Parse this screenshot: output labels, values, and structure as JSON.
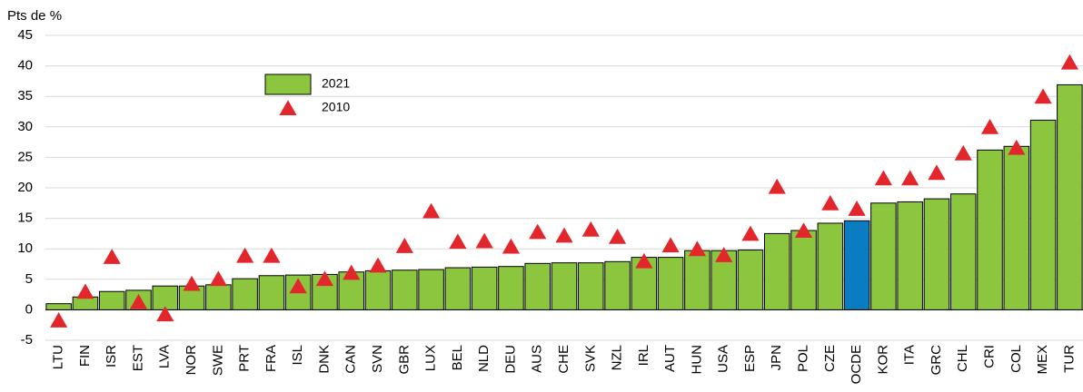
{
  "chart_data": {
    "type": "bar",
    "ylabel": "Pts de %",
    "categories": [
      "LTU",
      "FIN",
      "ISR",
      "EST",
      "LVA",
      "NOR",
      "SWE",
      "PRT",
      "FRA",
      "ISL",
      "DNK",
      "CAN",
      "SVN",
      "GBR",
      "LUX",
      "BEL",
      "NLD",
      "DEU",
      "AUS",
      "CHE",
      "SVK",
      "NZL",
      "IRL",
      "AUT",
      "HUN",
      "USA",
      "ESP",
      "JPN",
      "POL",
      "CZE",
      "OCDE",
      "KOR",
      "ITA",
      "GRC",
      "CHL",
      "CRI",
      "COL",
      "MEX",
      "TUR"
    ],
    "series": [
      {
        "name": "2021",
        "kind": "bar",
        "color": "#8cc63f",
        "colors": [
          "#8cc63f",
          "#8cc63f",
          "#8cc63f",
          "#8cc63f",
          "#8cc63f",
          "#8cc63f",
          "#8cc63f",
          "#8cc63f",
          "#8cc63f",
          "#8cc63f",
          "#8cc63f",
          "#8cc63f",
          "#8cc63f",
          "#8cc63f",
          "#8cc63f",
          "#8cc63f",
          "#8cc63f",
          "#8cc63f",
          "#8cc63f",
          "#8cc63f",
          "#8cc63f",
          "#8cc63f",
          "#8cc63f",
          "#8cc63f",
          "#8cc63f",
          "#8cc63f",
          "#8cc63f",
          "#8cc63f",
          "#8cc63f",
          "#8cc63f",
          "#0a7cc1",
          "#8cc63f",
          "#8cc63f",
          "#8cc63f",
          "#8cc63f",
          "#8cc63f",
          "#8cc63f",
          "#8cc63f",
          "#8cc63f"
        ],
        "values": [
          1.0,
          2.1,
          3.0,
          3.2,
          3.9,
          3.9,
          4.1,
          5.1,
          5.6,
          5.7,
          5.8,
          6.2,
          6.4,
          6.5,
          6.6,
          6.9,
          7.0,
          7.1,
          7.6,
          7.7,
          7.7,
          7.9,
          8.6,
          8.6,
          9.7,
          9.7,
          9.8,
          12.5,
          13.0,
          14.2,
          14.6,
          17.5,
          17.7,
          18.2,
          19.0,
          26.2,
          26.8,
          31.1,
          36.9
        ]
      },
      {
        "name": "2010",
        "kind": "triangle",
        "color": "#e3262c",
        "values": [
          -1.7,
          3.0,
          8.7,
          1.3,
          -0.7,
          4.3,
          5.1,
          8.9,
          8.9,
          3.9,
          5.1,
          6.1,
          7.3,
          10.5,
          16.2,
          11.2,
          11.3,
          10.4,
          12.8,
          12.2,
          13.2,
          12.0,
          8.0,
          10.6,
          10.0,
          9.0,
          12.5,
          20.2,
          13.0,
          17.5,
          16.6,
          21.6,
          21.6,
          22.5,
          25.7,
          30.0,
          26.6,
          35.0,
          40.6
        ]
      }
    ],
    "ylim": [
      -5,
      45
    ],
    "yticks": [
      -5,
      0,
      5,
      10,
      15,
      20,
      25,
      30,
      35,
      40,
      45
    ],
    "grid": true
  }
}
